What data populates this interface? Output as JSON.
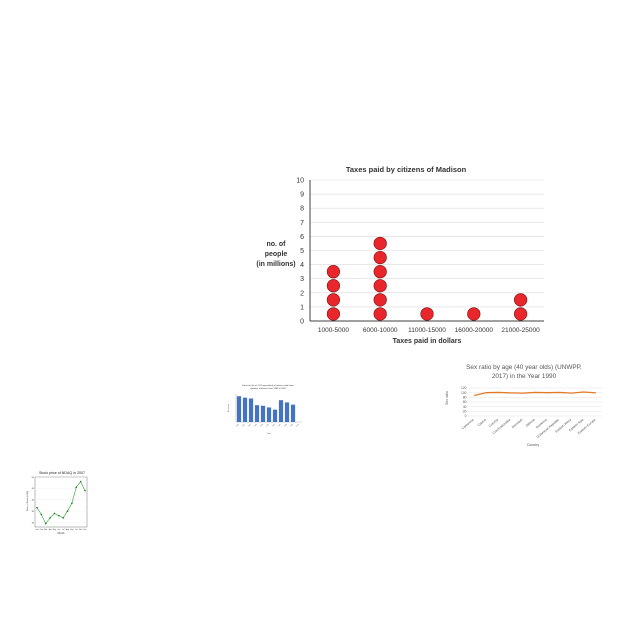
{
  "chart_data": [
    {
      "type": "dot",
      "title": "Taxes paid by citizens of Madison",
      "xlabel": "Taxes paid in dollars",
      "ylabel_lines": [
        "no. of",
        "people",
        "(in millions)"
      ],
      "categories": [
        "1000-5000",
        "6000-10000",
        "11000-15000",
        "16000-20000",
        "21000-25000"
      ],
      "values": [
        4,
        6,
        1,
        1,
        2
      ],
      "yticks": [
        "0",
        "1",
        "2",
        "3",
        "4",
        "5",
        "6",
        "7",
        "8",
        "9",
        "10"
      ],
      "ylim": [
        0,
        10
      ],
      "grid": true,
      "colors": {
        "dot": "#e8262b",
        "dot_stroke": "#7a1010",
        "grid": "#d9d9d9",
        "axis": "#404040"
      }
    },
    {
      "type": "bar",
      "title_lines": [
        "Emission (kt of CO2 equivalent) of nitrous oxide from",
        "synthetic fertilizers from 1990 to 2007"
      ],
      "xlabel": "Year",
      "ylabel": "Emission",
      "categories": [
        "1990",
        "1991",
        "1992",
        "1993",
        "1994",
        "1995",
        "1996",
        "1997",
        "1998",
        "1999",
        "2000"
      ],
      "values": [
        9.2,
        8.7,
        8.4,
        6.0,
        5.8,
        5.2,
        4.4,
        7.8,
        7.0,
        6.2,
        0
      ],
      "ylim": [
        0,
        10
      ],
      "colors": {
        "bar": "#4472c4"
      }
    },
    {
      "type": "line",
      "title_lines": [
        "Sex ratio by age (40 year olds) (UNWPP,",
        "2017) in the Year 1990"
      ],
      "xlabel": "Country",
      "ylabel": "Sex ratio",
      "categories": [
        "Cameroon",
        "Cyprus",
        "Czechia",
        "Czechoslovakia",
        "Denmark",
        "Djibouti",
        "Dominica",
        "Dominican Republic",
        "Eastern Africa",
        "Eastern Asia",
        "Eastern Europe"
      ],
      "values": [
        88,
        100,
        101,
        99,
        98,
        101,
        100,
        101,
        98,
        103,
        99
      ],
      "yticks": [
        "0",
        "20",
        "40",
        "60",
        "80",
        "100",
        "120"
      ],
      "ylim": [
        0,
        120
      ],
      "colors": {
        "line": "#e07b29",
        "grid": "#dddddd"
      }
    },
    {
      "type": "line",
      "title": "Stock price of NDAQ in 2007",
      "xlabel": "Month",
      "ylabel": "Price of Stock (USD)",
      "categories": [
        "Jan",
        "Feb",
        "Mar",
        "Apr",
        "May",
        "Jun",
        "Jul",
        "Aug",
        "Sep",
        "Oct",
        "Nov",
        "Dec"
      ],
      "values": [
        36.5,
        33.5,
        29.5,
        32.0,
        34.0,
        33.0,
        32.0,
        35.0,
        38.5,
        45.5,
        48.0,
        44.0
      ],
      "ylim": [
        28,
        50
      ],
      "yticks": [
        "30",
        "35",
        "40",
        "45",
        "50"
      ],
      "grid": true,
      "colors": {
        "line": "#2ca02c",
        "marker": "#1f6f1f",
        "grid": "#e6e6e6"
      }
    }
  ]
}
